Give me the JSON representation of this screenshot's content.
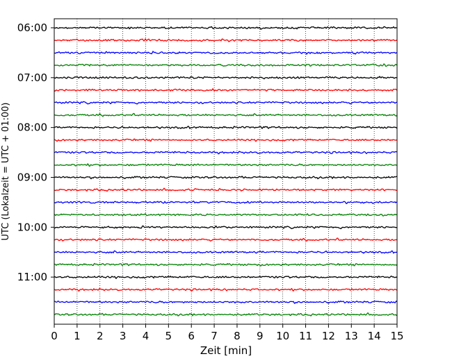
{
  "chart_data": {
    "type": "line",
    "title": "",
    "xlabel": "Zeit  [min]",
    "ylabel": "UTC (Lokalzeit = UTC + 01:00)",
    "xlim": [
      0,
      15
    ],
    "x_ticks": [
      "0",
      "1",
      "2",
      "3",
      "4",
      "5",
      "6",
      "7",
      "8",
      "9",
      "10",
      "11",
      "12",
      "13",
      "14",
      "15"
    ],
    "y_ticks": [
      "06:00",
      "07:00",
      "08:00",
      "09:00",
      "10:00",
      "11:00"
    ],
    "trace_colors": [
      "#000000",
      "#ff0000",
      "#0000ff",
      "#008000"
    ],
    "trace_interval_min": 15,
    "traces": [
      {
        "start": "06:00",
        "color": "#000000"
      },
      {
        "start": "06:15",
        "color": "#ff0000"
      },
      {
        "start": "06:30",
        "color": "#0000ff"
      },
      {
        "start": "06:45",
        "color": "#008000"
      },
      {
        "start": "07:00",
        "color": "#000000"
      },
      {
        "start": "07:15",
        "color": "#ff0000"
      },
      {
        "start": "07:30",
        "color": "#0000ff"
      },
      {
        "start": "07:45",
        "color": "#008000"
      },
      {
        "start": "08:00",
        "color": "#000000"
      },
      {
        "start": "08:15",
        "color": "#ff0000"
      },
      {
        "start": "08:30",
        "color": "#0000ff"
      },
      {
        "start": "08:45",
        "color": "#008000"
      },
      {
        "start": "09:00",
        "color": "#000000"
      },
      {
        "start": "09:15",
        "color": "#ff0000"
      },
      {
        "start": "09:30",
        "color": "#0000ff"
      },
      {
        "start": "09:45",
        "color": "#008000"
      },
      {
        "start": "10:00",
        "color": "#000000"
      },
      {
        "start": "10:15",
        "color": "#ff0000"
      },
      {
        "start": "10:30",
        "color": "#0000ff"
      },
      {
        "start": "10:45",
        "color": "#008000"
      },
      {
        "start": "11:00",
        "color": "#000000"
      },
      {
        "start": "11:15",
        "color": "#ff0000"
      },
      {
        "start": "11:30",
        "color": "#0000ff"
      },
      {
        "start": "11:45",
        "color": "#008000"
      }
    ],
    "vertical_gridlines": "dotted",
    "legend": "none"
  }
}
